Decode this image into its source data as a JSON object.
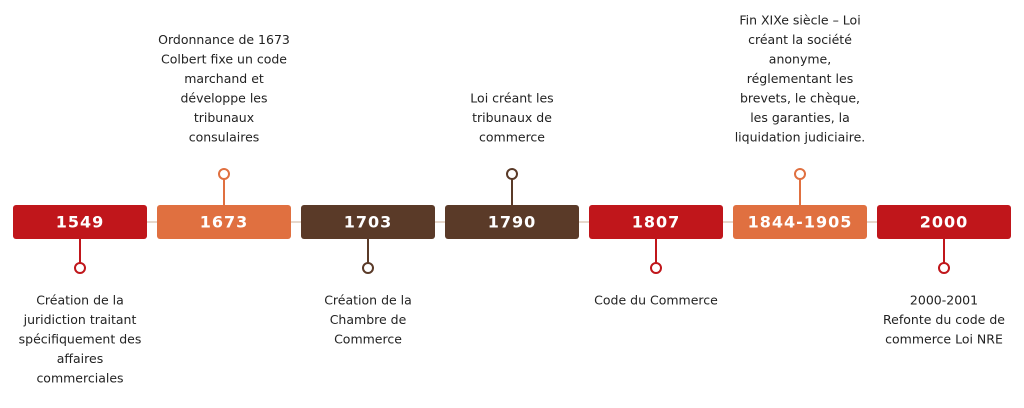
{
  "events": [
    {
      "year": "1549",
      "color": "#c0161b",
      "lines": [
        "Création de la",
        "juridiction traitant",
        "spécifiquement des",
        "affaires",
        "commerciales"
      ]
    },
    {
      "year": "1673",
      "color": "#e07040",
      "lines": [
        "Ordonnance de 1673",
        "Colbert fixe un code",
        "marchand et",
        "développe les",
        "tribunaux",
        "consulaires"
      ]
    },
    {
      "year": "1703",
      "color": "#5a3a28",
      "lines": [
        "Création de la",
        "Chambre de",
        "Commerce"
      ]
    },
    {
      "year": "1790",
      "color": "#5a3a28",
      "lines": [
        "Loi créant les",
        "tribunaux de",
        "commerce"
      ]
    },
    {
      "year": "1807",
      "color": "#c0161b",
      "lines": [
        "Code du Commerce"
      ]
    },
    {
      "year": "1844-1905",
      "color": "#e07040",
      "lines": [
        "Fin XIXe siècle – Loi",
        "créant la société",
        "anonyme,",
        "réglementant les",
        "brevets, le chèque,",
        "les garanties, la",
        "liquidation judiciaire."
      ]
    },
    {
      "year": "2000",
      "color": "#c0161b",
      "lines": [
        "2000-2001",
        "Refonte du code de",
        "commerce Loi NRE"
      ]
    }
  ]
}
